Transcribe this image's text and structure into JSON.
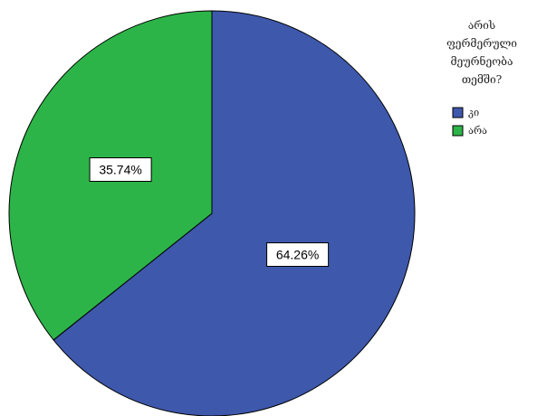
{
  "chart_data": {
    "type": "pie",
    "legend_title_lines": [
      "არის",
      "ფერმერული",
      "მეურნეობა",
      "თემში?"
    ],
    "legend_placement": "top-right",
    "slices": [
      {
        "label": "კი",
        "value": 64.26,
        "display": "64.26%",
        "color": "#3e58ac"
      },
      {
        "label": "არა",
        "value": 35.74,
        "display": "35.74%",
        "color": "#2db448"
      }
    ]
  }
}
